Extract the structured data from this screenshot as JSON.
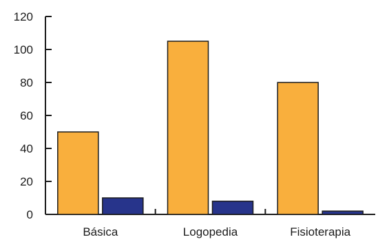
{
  "chart_data": {
    "type": "bar",
    "title": "",
    "xlabel": "",
    "ylabel": "",
    "categories": [
      "Básica",
      "Logopedia",
      "Fisioterapia"
    ],
    "series": [
      {
        "values": [
          50,
          105,
          80
        ],
        "color": "#F9AF3D"
      },
      {
        "values": [
          10,
          8,
          2
        ],
        "color": "#27348B"
      }
    ],
    "ylim": [
      0,
      120
    ],
    "yticks": [
      "0",
      "20",
      "40",
      "60",
      "80",
      "100",
      "120"
    ],
    "grid": false,
    "legend": "none",
    "bar_edge_color": "#1a1a1a",
    "axis_color": "#1a1a1a"
  }
}
